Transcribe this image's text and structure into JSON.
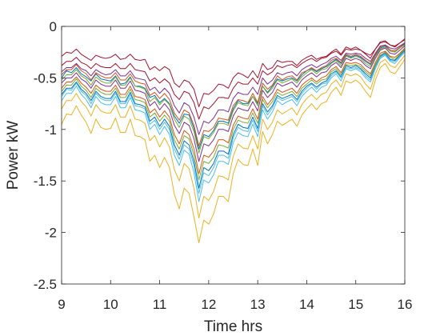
{
  "chart_data": {
    "type": "line",
    "title": "",
    "xlabel": "Time hrs",
    "ylabel": "Power kW",
    "xlim": [
      9,
      16
    ],
    "ylim": [
      -2.5,
      0
    ],
    "xticks": [
      9,
      10,
      11,
      12,
      13,
      14,
      15,
      16
    ],
    "yticks": [
      0,
      -0.5,
      -1,
      -1.5,
      -2,
      -2.5
    ],
    "xtick_labels": [
      "9",
      "10",
      "11",
      "12",
      "13",
      "14",
      "15",
      "16"
    ],
    "ytick_labels": [
      "0",
      "-0.5",
      "-1",
      "-1.5",
      "-2",
      "-2.5"
    ],
    "grid": false,
    "legend": "none",
    "x": [
      9.0,
      9.1,
      9.2,
      9.3,
      9.4,
      9.5,
      9.6,
      9.7,
      9.8,
      9.9,
      10.0,
      10.1,
      10.2,
      10.3,
      10.4,
      10.5,
      10.6,
      10.7,
      10.8,
      10.9,
      11.0,
      11.1,
      11.2,
      11.3,
      11.4,
      11.5,
      11.6,
      11.7,
      11.8,
      11.9,
      12.0,
      12.1,
      12.2,
      12.3,
      12.4,
      12.5,
      12.6,
      12.7,
      12.8,
      12.9,
      13.0,
      13.1,
      13.2,
      13.3,
      13.4,
      13.5,
      13.6,
      13.7,
      13.8,
      13.9,
      14.0,
      14.1,
      14.2,
      14.3,
      14.4,
      14.5,
      14.6,
      14.7,
      14.8,
      14.9,
      15.0,
      15.1,
      15.2,
      15.3,
      15.4,
      15.5,
      15.6,
      15.7,
      15.8,
      15.9,
      16.0
    ],
    "series": [
      {
        "color": "#A2142F",
        "values": [
          -0.29,
          -0.25,
          -0.26,
          -0.22,
          -0.27,
          -0.3,
          -0.33,
          -0.28,
          -0.3,
          -0.31,
          -0.3,
          -0.27,
          -0.32,
          -0.31,
          -0.27,
          -0.32,
          -0.33,
          -0.32,
          -0.42,
          -0.39,
          -0.43,
          -0.39,
          -0.42,
          -0.55,
          -0.59,
          -0.52,
          -0.54,
          -0.61,
          -0.78,
          -0.65,
          -0.66,
          -0.62,
          -0.56,
          -0.57,
          -0.6,
          -0.5,
          -0.45,
          -0.47,
          -0.5,
          -0.43,
          -0.5,
          -0.36,
          -0.42,
          -0.4,
          -0.33,
          -0.35,
          -0.34,
          -0.34,
          -0.38,
          -0.33,
          -0.3,
          -0.28,
          -0.32,
          -0.3,
          -0.29,
          -0.25,
          -0.22,
          -0.27,
          -0.2,
          -0.22,
          -0.2,
          -0.23,
          -0.27,
          -0.31,
          -0.22,
          -0.15,
          -0.14,
          -0.18,
          -0.2,
          -0.16,
          -0.12
        ]
      },
      {
        "color": "#0072BD",
        "values": [
          -0.5,
          -0.43,
          -0.45,
          -0.4,
          -0.46,
          -0.49,
          -0.53,
          -0.46,
          -0.51,
          -0.52,
          -0.53,
          -0.48,
          -0.56,
          -0.55,
          -0.49,
          -0.58,
          -0.58,
          -0.6,
          -0.69,
          -0.67,
          -0.74,
          -0.7,
          -0.75,
          -0.87,
          -0.94,
          -0.85,
          -0.86,
          -0.99,
          -1.19,
          -1.05,
          -1.07,
          -1.01,
          -0.92,
          -0.92,
          -0.94,
          -0.8,
          -0.72,
          -0.75,
          -0.75,
          -0.68,
          -0.75,
          -0.58,
          -0.64,
          -0.58,
          -0.51,
          -0.53,
          -0.51,
          -0.5,
          -0.53,
          -0.47,
          -0.43,
          -0.41,
          -0.44,
          -0.41,
          -0.39,
          -0.35,
          -0.32,
          -0.36,
          -0.28,
          -0.3,
          -0.28,
          -0.3,
          -0.34,
          -0.37,
          -0.28,
          -0.21,
          -0.19,
          -0.23,
          -0.24,
          -0.2,
          -0.17
        ]
      },
      {
        "color": "#D95319",
        "values": [
          -0.47,
          -0.42,
          -0.42,
          -0.37,
          -0.43,
          -0.46,
          -0.52,
          -0.45,
          -0.48,
          -0.5,
          -0.5,
          -0.45,
          -0.52,
          -0.52,
          -0.46,
          -0.53,
          -0.55,
          -0.56,
          -0.67,
          -0.64,
          -0.7,
          -0.65,
          -0.71,
          -0.84,
          -0.91,
          -0.81,
          -0.84,
          -0.96,
          -1.16,
          -1.01,
          -1.02,
          -0.98,
          -0.89,
          -0.9,
          -0.91,
          -0.77,
          -0.71,
          -0.72,
          -0.74,
          -0.65,
          -0.74,
          -0.55,
          -0.61,
          -0.57,
          -0.48,
          -0.52,
          -0.49,
          -0.48,
          -0.52,
          -0.45,
          -0.43,
          -0.4,
          -0.43,
          -0.4,
          -0.38,
          -0.33,
          -0.31,
          -0.35,
          -0.27,
          -0.29,
          -0.27,
          -0.29,
          -0.33,
          -0.36,
          -0.27,
          -0.2,
          -0.18,
          -0.23,
          -0.24,
          -0.2,
          -0.16
        ]
      },
      {
        "color": "#EDB120",
        "values": [
          -0.95,
          -0.85,
          -0.86,
          -0.77,
          -0.86,
          -0.93,
          -1.04,
          -0.9,
          -0.98,
          -1.0,
          -0.99,
          -0.89,
          -1.03,
          -1.03,
          -0.9,
          -1.06,
          -1.07,
          -1.1,
          -1.31,
          -1.25,
          -1.37,
          -1.27,
          -1.37,
          -1.63,
          -1.77,
          -1.57,
          -1.62,
          -1.85,
          -2.1,
          -1.88,
          -1.92,
          -1.82,
          -1.65,
          -1.65,
          -1.7,
          -1.43,
          -1.29,
          -1.34,
          -1.35,
          -1.19,
          -1.35,
          -1.02,
          -1.14,
          -1.05,
          -0.92,
          -0.96,
          -0.93,
          -0.9,
          -0.97,
          -0.86,
          -0.8,
          -0.75,
          -0.81,
          -0.75,
          -0.73,
          -0.64,
          -0.59,
          -0.67,
          -0.53,
          -0.55,
          -0.52,
          -0.56,
          -0.63,
          -0.69,
          -0.52,
          -0.4,
          -0.36,
          -0.44,
          -0.46,
          -0.39,
          -0.32
        ]
      },
      {
        "color": "#7E2F8E",
        "values": [
          -0.55,
          -0.5,
          -0.5,
          -0.45,
          -0.51,
          -0.54,
          -0.6,
          -0.52,
          -0.56,
          -0.58,
          -0.58,
          -0.52,
          -0.6,
          -0.6,
          -0.53,
          -0.62,
          -0.63,
          -0.65,
          -0.77,
          -0.73,
          -0.81,
          -0.75,
          -0.81,
          -0.96,
          -1.04,
          -0.93,
          -0.96,
          -1.09,
          -1.31,
          -1.14,
          -1.16,
          -1.1,
          -1.0,
          -1.0,
          -1.02,
          -0.87,
          -0.79,
          -0.81,
          -0.82,
          -0.73,
          -0.82,
          -0.62,
          -0.69,
          -0.64,
          -0.55,
          -0.58,
          -0.56,
          -0.54,
          -0.59,
          -0.52,
          -0.48,
          -0.45,
          -0.49,
          -0.45,
          -0.44,
          -0.38,
          -0.35,
          -0.4,
          -0.31,
          -0.33,
          -0.31,
          -0.33,
          -0.38,
          -0.41,
          -0.31,
          -0.23,
          -0.21,
          -0.26,
          -0.27,
          -0.23,
          -0.19
        ]
      },
      {
        "color": "#77AC30",
        "values": [
          -0.52,
          -0.47,
          -0.47,
          -0.42,
          -0.48,
          -0.51,
          -0.57,
          -0.49,
          -0.53,
          -0.55,
          -0.55,
          -0.49,
          -0.57,
          -0.57,
          -0.5,
          -0.58,
          -0.59,
          -0.61,
          -0.73,
          -0.69,
          -0.76,
          -0.71,
          -0.76,
          -0.9,
          -0.98,
          -0.87,
          -0.9,
          -1.02,
          -1.23,
          -1.07,
          -1.09,
          -1.03,
          -0.94,
          -0.94,
          -0.96,
          -0.82,
          -0.74,
          -0.76,
          -0.77,
          -0.68,
          -0.77,
          -0.58,
          -0.65,
          -0.6,
          -0.52,
          -0.55,
          -0.53,
          -0.51,
          -0.55,
          -0.49,
          -0.45,
          -0.42,
          -0.46,
          -0.42,
          -0.41,
          -0.36,
          -0.33,
          -0.38,
          -0.29,
          -0.31,
          -0.29,
          -0.31,
          -0.36,
          -0.39,
          -0.29,
          -0.22,
          -0.2,
          -0.24,
          -0.25,
          -0.21,
          -0.18
        ]
      },
      {
        "color": "#4DBEEE",
        "values": [
          -0.72,
          -0.65,
          -0.65,
          -0.58,
          -0.66,
          -0.71,
          -0.79,
          -0.68,
          -0.74,
          -0.76,
          -0.76,
          -0.68,
          -0.79,
          -0.79,
          -0.69,
          -0.81,
          -0.82,
          -0.84,
          -1.0,
          -0.95,
          -1.05,
          -0.97,
          -1.05,
          -1.25,
          -1.35,
          -1.2,
          -1.24,
          -1.42,
          -1.7,
          -1.49,
          -1.52,
          -1.44,
          -1.31,
          -1.31,
          -1.34,
          -1.13,
          -1.03,
          -1.06,
          -1.07,
          -0.95,
          -1.07,
          -0.81,
          -0.9,
          -0.83,
          -0.72,
          -0.76,
          -0.73,
          -0.71,
          -0.77,
          -0.68,
          -0.63,
          -0.59,
          -0.64,
          -0.59,
          -0.57,
          -0.5,
          -0.46,
          -0.53,
          -0.41,
          -0.43,
          -0.41,
          -0.44,
          -0.5,
          -0.54,
          -0.41,
          -0.31,
          -0.28,
          -0.34,
          -0.36,
          -0.3,
          -0.25
        ]
      },
      {
        "color": "#A2142F",
        "values": [
          -0.38,
          -0.34,
          -0.34,
          -0.3,
          -0.35,
          -0.37,
          -0.41,
          -0.36,
          -0.39,
          -0.4,
          -0.4,
          -0.36,
          -0.41,
          -0.41,
          -0.36,
          -0.42,
          -0.43,
          -0.44,
          -0.53,
          -0.5,
          -0.55,
          -0.51,
          -0.55,
          -0.66,
          -0.71,
          -0.63,
          -0.65,
          -0.74,
          -0.9,
          -0.78,
          -0.8,
          -0.75,
          -0.69,
          -0.69,
          -0.7,
          -0.6,
          -0.54,
          -0.56,
          -0.56,
          -0.5,
          -0.56,
          -0.43,
          -0.47,
          -0.44,
          -0.38,
          -0.4,
          -0.38,
          -0.37,
          -0.4,
          -0.36,
          -0.33,
          -0.31,
          -0.34,
          -0.31,
          -0.3,
          -0.26,
          -0.24,
          -0.28,
          -0.22,
          -0.23,
          -0.22,
          -0.23,
          -0.26,
          -0.28,
          -0.22,
          -0.16,
          -0.15,
          -0.18,
          -0.19,
          -0.16,
          -0.13
        ]
      },
      {
        "color": "#0072BD",
        "values": [
          -0.66,
          -0.6,
          -0.6,
          -0.54,
          -0.61,
          -0.65,
          -0.72,
          -0.63,
          -0.68,
          -0.7,
          -0.7,
          -0.63,
          -0.73,
          -0.73,
          -0.64,
          -0.75,
          -0.76,
          -0.78,
          -0.92,
          -0.88,
          -0.97,
          -0.9,
          -0.97,
          -1.15,
          -1.25,
          -1.11,
          -1.15,
          -1.31,
          -1.57,
          -1.37,
          -1.4,
          -1.33,
          -1.21,
          -1.21,
          -1.24,
          -1.05,
          -0.95,
          -0.98,
          -0.99,
          -0.88,
          -0.99,
          -0.75,
          -0.83,
          -0.77,
          -0.67,
          -0.7,
          -0.68,
          -0.66,
          -0.71,
          -0.63,
          -0.58,
          -0.55,
          -0.59,
          -0.55,
          -0.53,
          -0.46,
          -0.43,
          -0.49,
          -0.38,
          -0.4,
          -0.38,
          -0.41,
          -0.46,
          -0.5,
          -0.38,
          -0.29,
          -0.26,
          -0.32,
          -0.33,
          -0.28,
          -0.23
        ]
      },
      {
        "color": "#D95319",
        "values": [
          -0.6,
          -0.54,
          -0.54,
          -0.49,
          -0.55,
          -0.59,
          -0.65,
          -0.57,
          -0.61,
          -0.63,
          -0.63,
          -0.57,
          -0.66,
          -0.66,
          -0.58,
          -0.68,
          -0.69,
          -0.71,
          -0.84,
          -0.8,
          -0.88,
          -0.82,
          -0.88,
          -1.05,
          -1.14,
          -1.01,
          -1.05,
          -1.19,
          -1.43,
          -1.25,
          -1.27,
          -1.21,
          -1.1,
          -1.1,
          -1.13,
          -0.96,
          -0.87,
          -0.89,
          -0.9,
          -0.8,
          -0.9,
          -0.68,
          -0.76,
          -0.7,
          -0.61,
          -0.64,
          -0.62,
          -0.6,
          -0.65,
          -0.57,
          -0.53,
          -0.5,
          -0.54,
          -0.5,
          -0.48,
          -0.42,
          -0.39,
          -0.45,
          -0.35,
          -0.36,
          -0.35,
          -0.37,
          -0.42,
          -0.46,
          -0.35,
          -0.26,
          -0.24,
          -0.29,
          -0.3,
          -0.26,
          -0.21
        ]
      },
      {
        "color": "#EDB120",
        "values": [
          -0.8,
          -0.72,
          -0.72,
          -0.65,
          -0.73,
          -0.78,
          -0.87,
          -0.76,
          -0.82,
          -0.84,
          -0.84,
          -0.76,
          -0.88,
          -0.88,
          -0.77,
          -0.9,
          -0.91,
          -0.94,
          -1.11,
          -1.06,
          -1.17,
          -1.08,
          -1.17,
          -1.39,
          -1.5,
          -1.33,
          -1.38,
          -1.57,
          -1.86,
          -1.65,
          -1.69,
          -1.6,
          -1.45,
          -1.46,
          -1.49,
          -1.26,
          -1.14,
          -1.18,
          -1.19,
          -1.06,
          -1.19,
          -0.9,
          -1.0,
          -0.93,
          -0.81,
          -0.85,
          -0.82,
          -0.79,
          -0.86,
          -0.76,
          -0.7,
          -0.66,
          -0.71,
          -0.66,
          -0.64,
          -0.56,
          -0.52,
          -0.59,
          -0.46,
          -0.48,
          -0.46,
          -0.49,
          -0.56,
          -0.61,
          -0.46,
          -0.35,
          -0.32,
          -0.38,
          -0.4,
          -0.34,
          -0.28
        ]
      },
      {
        "color": "#7E2F8E",
        "values": [
          -0.44,
          -0.4,
          -0.4,
          -0.36,
          -0.41,
          -0.43,
          -0.48,
          -0.42,
          -0.45,
          -0.47,
          -0.46,
          -0.42,
          -0.48,
          -0.48,
          -0.43,
          -0.5,
          -0.51,
          -0.52,
          -0.62,
          -0.59,
          -0.65,
          -0.6,
          -0.65,
          -0.77,
          -0.84,
          -0.74,
          -0.77,
          -0.88,
          -1.05,
          -0.92,
          -0.94,
          -0.89,
          -0.81,
          -0.81,
          -0.83,
          -0.7,
          -0.64,
          -0.66,
          -0.66,
          -0.59,
          -0.66,
          -0.5,
          -0.56,
          -0.52,
          -0.45,
          -0.47,
          -0.45,
          -0.44,
          -0.48,
          -0.42,
          -0.39,
          -0.37,
          -0.4,
          -0.37,
          -0.35,
          -0.31,
          -0.29,
          -0.33,
          -0.26,
          -0.27,
          -0.26,
          -0.27,
          -0.31,
          -0.34,
          -0.26,
          -0.19,
          -0.18,
          -0.21,
          -0.22,
          -0.19,
          -0.16
        ]
      },
      {
        "color": "#77AC30",
        "values": [
          -0.63,
          -0.57,
          -0.57,
          -0.51,
          -0.58,
          -0.62,
          -0.69,
          -0.6,
          -0.64,
          -0.66,
          -0.66,
          -0.6,
          -0.69,
          -0.69,
          -0.61,
          -0.71,
          -0.72,
          -0.74,
          -0.88,
          -0.84,
          -0.92,
          -0.86,
          -0.92,
          -1.1,
          -1.19,
          -1.06,
          -1.09,
          -1.25,
          -1.49,
          -1.31,
          -1.33,
          -1.27,
          -1.15,
          -1.16,
          -1.18,
          -1.0,
          -0.91,
          -0.93,
          -0.94,
          -0.84,
          -0.94,
          -0.71,
          -0.79,
          -0.73,
          -0.64,
          -0.67,
          -0.65,
          -0.63,
          -0.68,
          -0.6,
          -0.56,
          -0.52,
          -0.56,
          -0.52,
          -0.51,
          -0.44,
          -0.41,
          -0.47,
          -0.37,
          -0.38,
          -0.37,
          -0.39,
          -0.44,
          -0.48,
          -0.37,
          -0.28,
          -0.25,
          -0.3,
          -0.32,
          -0.27,
          -0.22
        ]
      },
      {
        "color": "#4DBEEE",
        "values": [
          -0.68,
          -0.61,
          -0.62,
          -0.55,
          -0.63,
          -0.67,
          -0.75,
          -0.65,
          -0.7,
          -0.72,
          -0.72,
          -0.65,
          -0.75,
          -0.75,
          -0.66,
          -0.77,
          -0.78,
          -0.8,
          -0.95,
          -0.91,
          -1.0,
          -0.93,
          -1.0,
          -1.19,
          -1.29,
          -1.15,
          -1.19,
          -1.35,
          -1.62,
          -1.42,
          -1.45,
          -1.37,
          -1.25,
          -1.25,
          -1.28,
          -1.08,
          -0.98,
          -1.01,
          -1.02,
          -0.91,
          -1.02,
          -0.77,
          -0.86,
          -0.79,
          -0.69,
          -0.72,
          -0.7,
          -0.68,
          -0.73,
          -0.65,
          -0.6,
          -0.56,
          -0.61,
          -0.56,
          -0.55,
          -0.48,
          -0.44,
          -0.5,
          -0.4,
          -0.41,
          -0.4,
          -0.42,
          -0.48,
          -0.52,
          -0.4,
          -0.3,
          -0.27,
          -0.33,
          -0.34,
          -0.29,
          -0.24
        ]
      }
    ]
  }
}
